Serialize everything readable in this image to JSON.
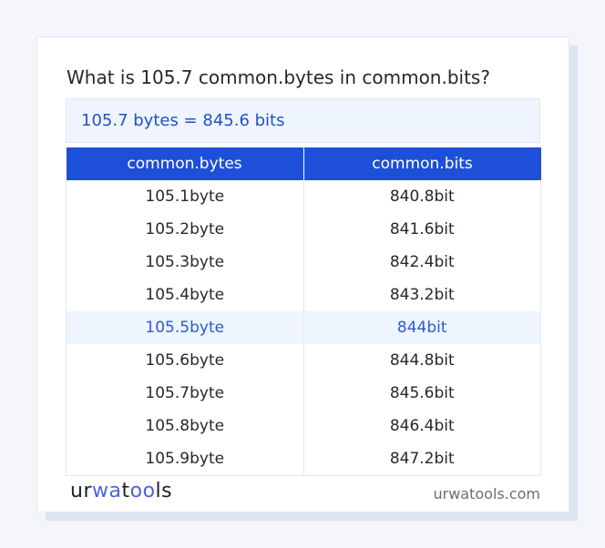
{
  "title": "What is 105.7 common.bytes in common.bits?",
  "result": "105.7 bytes = 845.6 bits",
  "table": {
    "headers": [
      "common.bytes",
      "common.bits"
    ],
    "rows": [
      [
        "105.1byte",
        "840.8bit"
      ],
      [
        "105.2byte",
        "841.6bit"
      ],
      [
        "105.3byte",
        "842.4bit"
      ],
      [
        "105.4byte",
        "843.2bit"
      ],
      [
        "105.5byte",
        "844bit"
      ],
      [
        "105.6byte",
        "844.8bit"
      ],
      [
        "105.7byte",
        "845.6bit"
      ],
      [
        "105.8byte",
        "846.4bit"
      ],
      [
        "105.9byte",
        "847.2bit"
      ]
    ],
    "highlighted_row": 4
  },
  "footer": {
    "logo": {
      "part1": "ur",
      "part2": "wa",
      "part3": "t",
      "part4": "oo",
      "part5": "ls"
    },
    "site": "urwatools.com"
  },
  "colors": {
    "accent": "#1d4fd8",
    "highlight_bg": "#eef5fe",
    "logo_blue": "#4a63e6"
  }
}
